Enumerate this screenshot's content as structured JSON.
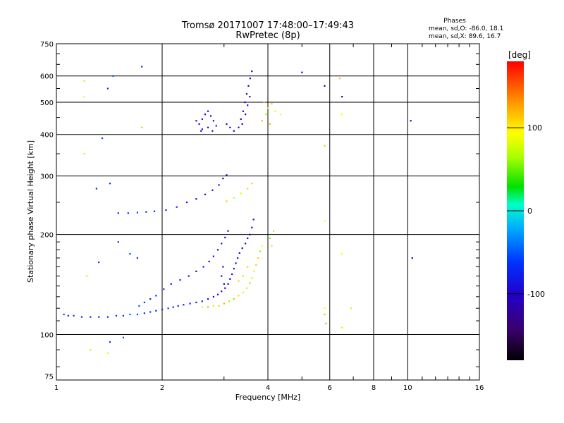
{
  "chart_data": {
    "type": "scatter",
    "title": "Tromsø 20171007 17:48:00–17:49:43",
    "subtitle": "RwPretec (8p)",
    "xlabel": "Frequency [MHz]",
    "ylabel": "Stationary phase Virtual Height [km]",
    "x_scale": "log",
    "y_scale": "log",
    "xlim": [
      1,
      16
    ],
    "ylim": [
      73,
      750
    ],
    "x_ticks": [
      1,
      2,
      4,
      6,
      8,
      10,
      16
    ],
    "y_ticks": [
      75,
      100,
      200,
      300,
      400,
      500,
      600,
      750
    ],
    "grid": true,
    "phases_box": {
      "title": "Phases",
      "line_o": "mean, sd,O: -86.0, 18.1",
      "line_x": "mean, sd,X:  89.6, 16.7"
    },
    "colorbar": {
      "label": "[deg]",
      "range": [
        -180,
        180
      ],
      "ticks": [
        100,
        0,
        -100
      ],
      "colormap": "rainbow (black-purple-blue-cyan-green-yellow-orange-red)"
    },
    "series": [
      {
        "polarization": "O",
        "mean_phase": -86,
        "points": [
          [
            1.05,
            115
          ],
          [
            1.08,
            114
          ],
          [
            1.12,
            114
          ],
          [
            1.18,
            113
          ],
          [
            1.25,
            113
          ],
          [
            1.32,
            113
          ],
          [
            1.4,
            113
          ],
          [
            1.48,
            114
          ],
          [
            1.55,
            114
          ],
          [
            1.62,
            115
          ],
          [
            1.7,
            115
          ],
          [
            1.78,
            116
          ],
          [
            1.85,
            117
          ],
          [
            1.92,
            118
          ],
          [
            2.0,
            119
          ],
          [
            2.08,
            120
          ],
          [
            2.15,
            121
          ],
          [
            2.22,
            122
          ],
          [
            2.3,
            123
          ],
          [
            2.4,
            124
          ],
          [
            2.5,
            125
          ],
          [
            2.6,
            126
          ],
          [
            2.7,
            128
          ],
          [
            2.8,
            130
          ],
          [
            2.88,
            132
          ],
          [
            2.95,
            135
          ],
          [
            3.02,
            138
          ],
          [
            3.08,
            142
          ],
          [
            3.12,
            147
          ],
          [
            3.16,
            152
          ],
          [
            3.2,
            158
          ],
          [
            3.24,
            164
          ],
          [
            3.28,
            170
          ],
          [
            3.32,
            176
          ],
          [
            3.38,
            182
          ],
          [
            3.45,
            188
          ],
          [
            3.5,
            195
          ],
          [
            3.55,
            200
          ],
          [
            3.6,
            210
          ],
          [
            3.64,
            222
          ],
          [
            1.72,
            122
          ],
          [
            1.78,
            125
          ],
          [
            1.85,
            128
          ],
          [
            1.92,
            131
          ],
          [
            2.02,
            137
          ],
          [
            2.12,
            142
          ],
          [
            2.25,
            146
          ],
          [
            2.38,
            150
          ],
          [
            2.5,
            155
          ],
          [
            2.62,
            160
          ],
          [
            2.72,
            166
          ],
          [
            2.8,
            172
          ],
          [
            2.88,
            180
          ],
          [
            2.95,
            188
          ],
          [
            3.02,
            196
          ],
          [
            3.08,
            205
          ],
          [
            2.98,
            160
          ],
          [
            2.95,
            150
          ],
          [
            3.0,
            142
          ],
          [
            1.5,
            232
          ],
          [
            1.6,
            232
          ],
          [
            1.7,
            233
          ],
          [
            1.8,
            234
          ],
          [
            1.9,
            235
          ],
          [
            2.05,
            237
          ],
          [
            2.2,
            242
          ],
          [
            2.35,
            250
          ],
          [
            2.5,
            256
          ],
          [
            2.65,
            264
          ],
          [
            2.78,
            272
          ],
          [
            2.9,
            282
          ],
          [
            2.98,
            295
          ],
          [
            3.05,
            302
          ],
          [
            2.55,
            430
          ],
          [
            2.6,
            445
          ],
          [
            2.65,
            460
          ],
          [
            2.7,
            470
          ],
          [
            2.75,
            455
          ],
          [
            2.8,
            440
          ],
          [
            2.85,
            425
          ],
          [
            2.6,
            415
          ],
          [
            2.7,
            420
          ],
          [
            2.78,
            410
          ],
          [
            2.5,
            440
          ],
          [
            2.58,
            410
          ],
          [
            3.3,
            420
          ],
          [
            3.35,
            445
          ],
          [
            3.4,
            470
          ],
          [
            3.44,
            500
          ],
          [
            3.48,
            530
          ],
          [
            3.52,
            560
          ],
          [
            3.56,
            590
          ],
          [
            3.6,
            620
          ],
          [
            3.38,
            430
          ],
          [
            3.45,
            460
          ],
          [
            3.5,
            490
          ],
          [
            3.55,
            520
          ],
          [
            3.2,
            410
          ],
          [
            3.12,
            420
          ],
          [
            3.05,
            430
          ],
          [
            1.35,
            390
          ],
          [
            1.42,
            285
          ],
          [
            1.3,
            275
          ],
          [
            1.75,
            640
          ],
          [
            1.45,
            600
          ],
          [
            1.4,
            550
          ],
          [
            1.32,
            165
          ],
          [
            1.5,
            190
          ],
          [
            1.62,
            175
          ],
          [
            1.7,
            170
          ],
          [
            5.0,
            615
          ],
          [
            5.8,
            560
          ],
          [
            10.2,
            440
          ],
          [
            10.3,
            170
          ],
          [
            6.5,
            520
          ],
          [
            1.42,
            95
          ],
          [
            1.55,
            98
          ]
        ]
      },
      {
        "polarization": "X",
        "mean_phase": 90,
        "points": [
          [
            2.6,
            121
          ],
          [
            2.7,
            121
          ],
          [
            2.8,
            122
          ],
          [
            2.9,
            122
          ],
          [
            3.0,
            124
          ],
          [
            3.1,
            126
          ],
          [
            3.2,
            128
          ],
          [
            3.3,
            131
          ],
          [
            3.4,
            134
          ],
          [
            3.48,
            138
          ],
          [
            3.55,
            143
          ],
          [
            3.6,
            148
          ],
          [
            3.65,
            155
          ],
          [
            3.7,
            162
          ],
          [
            3.75,
            170
          ],
          [
            3.8,
            178
          ],
          [
            3.85,
            185
          ],
          [
            3.5,
            160
          ],
          [
            3.4,
            150
          ],
          [
            3.3,
            145
          ],
          [
            3.05,
            252
          ],
          [
            3.2,
            258
          ],
          [
            3.35,
            266
          ],
          [
            3.5,
            275
          ],
          [
            3.6,
            285
          ],
          [
            3.85,
            440
          ],
          [
            3.95,
            460
          ],
          [
            4.0,
            480
          ],
          [
            4.1,
            495
          ],
          [
            4.05,
            430
          ],
          [
            4.2,
            470
          ],
          [
            4.35,
            460
          ],
          [
            3.9,
            500
          ],
          [
            4.05,
            195
          ],
          [
            4.15,
            205
          ],
          [
            4.1,
            185
          ],
          [
            5.8,
            120
          ],
          [
            5.8,
            115
          ],
          [
            5.85,
            108
          ],
          [
            6.5,
            175
          ],
          [
            6.5,
            105
          ],
          [
            6.9,
            120
          ],
          [
            6.4,
            590
          ],
          [
            6.5,
            460
          ],
          [
            5.8,
            370
          ],
          [
            5.8,
            220
          ],
          [
            1.25,
            90
          ],
          [
            1.4,
            88
          ],
          [
            1.22,
            150
          ],
          [
            1.2,
            580
          ],
          [
            1.2,
            520
          ],
          [
            1.2,
            350
          ],
          [
            1.75,
            420
          ]
        ]
      }
    ]
  }
}
